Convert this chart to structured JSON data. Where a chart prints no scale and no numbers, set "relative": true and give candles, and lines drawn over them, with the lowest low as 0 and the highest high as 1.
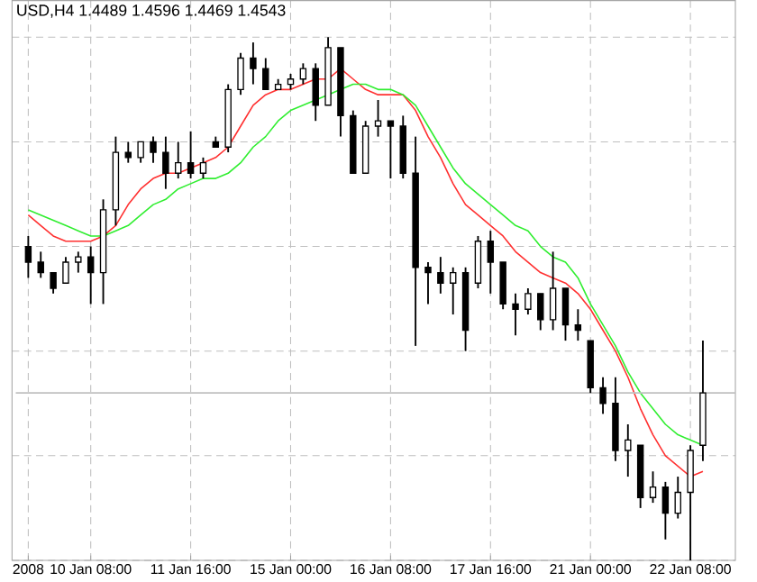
{
  "chart_data": {
    "type": "candlestick",
    "title": "USD,H4 1.4489 1.4596 1.4469 1.4543",
    "relative": true,
    "grid": true,
    "categories": [
      "2008",
      null,
      null,
      null,
      null,
      "10 Jan 08:00",
      null,
      null,
      null,
      null,
      null,
      null,
      null,
      "11 Jan 16:00",
      null,
      null,
      null,
      null,
      null,
      null,
      null,
      "15 Jan 00:00",
      null,
      null,
      null,
      null,
      null,
      null,
      null,
      "16 Jan 08:00",
      null,
      null,
      null,
      null,
      null,
      null,
      null,
      "17 Jan 16:00",
      null,
      null,
      null,
      null,
      null,
      null,
      null,
      "21 Jan 00:00",
      null,
      null,
      null,
      null,
      null,
      null,
      null,
      "22 Jan 08:00",
      null
    ],
    "ohlc": [
      [
        0.6,
        0.62,
        0.54,
        0.57
      ],
      [
        0.57,
        0.59,
        0.54,
        0.55
      ],
      [
        0.55,
        0.55,
        0.51,
        0.52
      ],
      [
        0.53,
        0.58,
        0.53,
        0.57
      ],
      [
        0.57,
        0.59,
        0.55,
        0.58
      ],
      [
        0.58,
        0.6,
        0.49,
        0.55
      ],
      [
        0.55,
        0.69,
        0.49,
        0.67
      ],
      [
        0.67,
        0.81,
        0.64,
        0.78
      ],
      [
        0.78,
        0.8,
        0.76,
        0.77
      ],
      [
        0.77,
        0.8,
        0.76,
        0.8
      ],
      [
        0.8,
        0.81,
        0.76,
        0.78
      ],
      [
        0.78,
        0.81,
        0.71,
        0.74
      ],
      [
        0.74,
        0.8,
        0.73,
        0.76
      ],
      [
        0.76,
        0.82,
        0.73,
        0.74
      ],
      [
        0.74,
        0.77,
        0.73,
        0.76
      ],
      [
        0.8,
        0.81,
        0.79,
        0.79
      ],
      [
        0.79,
        0.91,
        0.78,
        0.9
      ],
      [
        0.9,
        0.97,
        0.89,
        0.96
      ],
      [
        0.96,
        0.99,
        0.91,
        0.94
      ],
      [
        0.94,
        0.96,
        0.9,
        0.9
      ],
      [
        0.9,
        0.92,
        0.9,
        0.91
      ],
      [
        0.91,
        0.93,
        0.9,
        0.92
      ],
      [
        0.92,
        0.95,
        0.91,
        0.94
      ],
      [
        0.94,
        0.95,
        0.84,
        0.87
      ],
      [
        0.87,
        1.0,
        0.87,
        0.98
      ],
      [
        0.98,
        0.98,
        0.81,
        0.85
      ],
      [
        0.85,
        0.86,
        0.74,
        0.74
      ],
      [
        0.74,
        0.84,
        0.74,
        0.83
      ],
      [
        0.83,
        0.88,
        0.81,
        0.84
      ],
      [
        0.84,
        0.84,
        0.73,
        0.83
      ],
      [
        0.83,
        0.85,
        0.73,
        0.74
      ],
      [
        0.74,
        0.81,
        0.41,
        0.56
      ],
      [
        0.56,
        0.57,
        0.49,
        0.55
      ],
      [
        0.55,
        0.58,
        0.51,
        0.53
      ],
      [
        0.53,
        0.56,
        0.47,
        0.55
      ],
      [
        0.55,
        0.56,
        0.4,
        0.44
      ],
      [
        0.53,
        0.62,
        0.52,
        0.61
      ],
      [
        0.61,
        0.63,
        0.51,
        0.57
      ],
      [
        0.57,
        0.57,
        0.48,
        0.49
      ],
      [
        0.49,
        0.51,
        0.43,
        0.48
      ],
      [
        0.48,
        0.52,
        0.47,
        0.51
      ],
      [
        0.51,
        0.51,
        0.44,
        0.46
      ],
      [
        0.46,
        0.59,
        0.44,
        0.52
      ],
      [
        0.52,
        0.52,
        0.42,
        0.45
      ],
      [
        0.45,
        0.48,
        0.42,
        0.44
      ],
      [
        0.42,
        0.42,
        0.32,
        0.33
      ],
      [
        0.33,
        0.35,
        0.28,
        0.3
      ],
      [
        0.3,
        0.35,
        0.19,
        0.21
      ],
      [
        0.21,
        0.26,
        0.16,
        0.23
      ],
      [
        0.22,
        0.22,
        0.1,
        0.12
      ],
      [
        0.12,
        0.17,
        0.11,
        0.14
      ],
      [
        0.14,
        0.15,
        0.04,
        0.09
      ],
      [
        0.09,
        0.16,
        0.08,
        0.13
      ],
      [
        0.13,
        0.22,
        0.0,
        0.21
      ],
      [
        0.22,
        0.42,
        0.19,
        0.32
      ]
    ],
    "series": [
      {
        "type": "line",
        "color": "#ff3030",
        "values": [
          0.66,
          0.64,
          0.62,
          0.61,
          0.61,
          0.61,
          0.62,
          0.64,
          0.68,
          0.71,
          0.73,
          0.74,
          0.74,
          0.75,
          0.76,
          0.77,
          0.79,
          0.83,
          0.87,
          0.89,
          0.9,
          0.9,
          0.91,
          0.92,
          0.92,
          0.94,
          0.92,
          0.9,
          0.89,
          0.89,
          0.89,
          0.86,
          0.81,
          0.77,
          0.72,
          0.68,
          0.66,
          0.64,
          0.62,
          0.59,
          0.57,
          0.55,
          0.54,
          0.53,
          0.51,
          0.48,
          0.44,
          0.4,
          0.35,
          0.29,
          0.24,
          0.2,
          0.18,
          0.16,
          0.17
        ]
      },
      {
        "type": "line",
        "color": "#30ee30",
        "values": [
          0.67,
          0.66,
          0.65,
          0.64,
          0.63,
          0.62,
          0.62,
          0.63,
          0.64,
          0.66,
          0.68,
          0.69,
          0.71,
          0.72,
          0.73,
          0.73,
          0.74,
          0.76,
          0.79,
          0.81,
          0.84,
          0.86,
          0.87,
          0.88,
          0.89,
          0.9,
          0.91,
          0.91,
          0.9,
          0.9,
          0.89,
          0.87,
          0.83,
          0.79,
          0.75,
          0.72,
          0.7,
          0.68,
          0.66,
          0.64,
          0.63,
          0.6,
          0.58,
          0.57,
          0.54,
          0.49,
          0.45,
          0.41,
          0.36,
          0.32,
          0.29,
          0.26,
          0.24,
          0.23,
          0.22
        ]
      }
    ],
    "ref_lines": [
      {
        "axis": "y",
        "value": 0.32,
        "color": "#c0c0c0"
      }
    ]
  }
}
